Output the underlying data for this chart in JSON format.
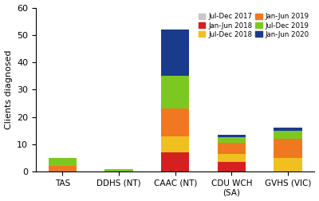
{
  "categories": [
    "TAS",
    "DDHS (NT)",
    "CAAC (NT)",
    "CDU WCH\n(SA)",
    "GVHS (VIC)"
  ],
  "series": [
    {
      "label": "Jul-Dec 2017",
      "color": "#c8c8c8",
      "values": [
        0,
        0,
        0,
        0,
        0
      ]
    },
    {
      "label": "Jan-Jun 2018",
      "color": "#d42020",
      "values": [
        0,
        0,
        7,
        3.5,
        0
      ]
    },
    {
      "label": "Jul-Dec 2018",
      "color": "#f0c020",
      "values": [
        0,
        0,
        6,
        3,
        5
      ]
    },
    {
      "label": "Jan-Jun 2019",
      "color": "#f07820",
      "values": [
        2,
        0,
        10,
        4,
        7
      ]
    },
    {
      "label": "Jul-Dec 2019",
      "color": "#7dc820",
      "values": [
        3,
        1,
        12,
        2,
        3
      ]
    },
    {
      "label": "Jan-Jun 2020",
      "color": "#1a3a8c",
      "values": [
        0,
        0,
        17,
        1,
        1
      ]
    }
  ],
  "legend_order": [
    0,
    1,
    2,
    3,
    4,
    5
  ],
  "legend_ncol": 2,
  "ylabel": "Clients diagnosed",
  "ylim": [
    0,
    60
  ],
  "yticks": [
    0,
    10,
    20,
    30,
    40,
    50,
    60
  ],
  "background_color": "#ffffff"
}
